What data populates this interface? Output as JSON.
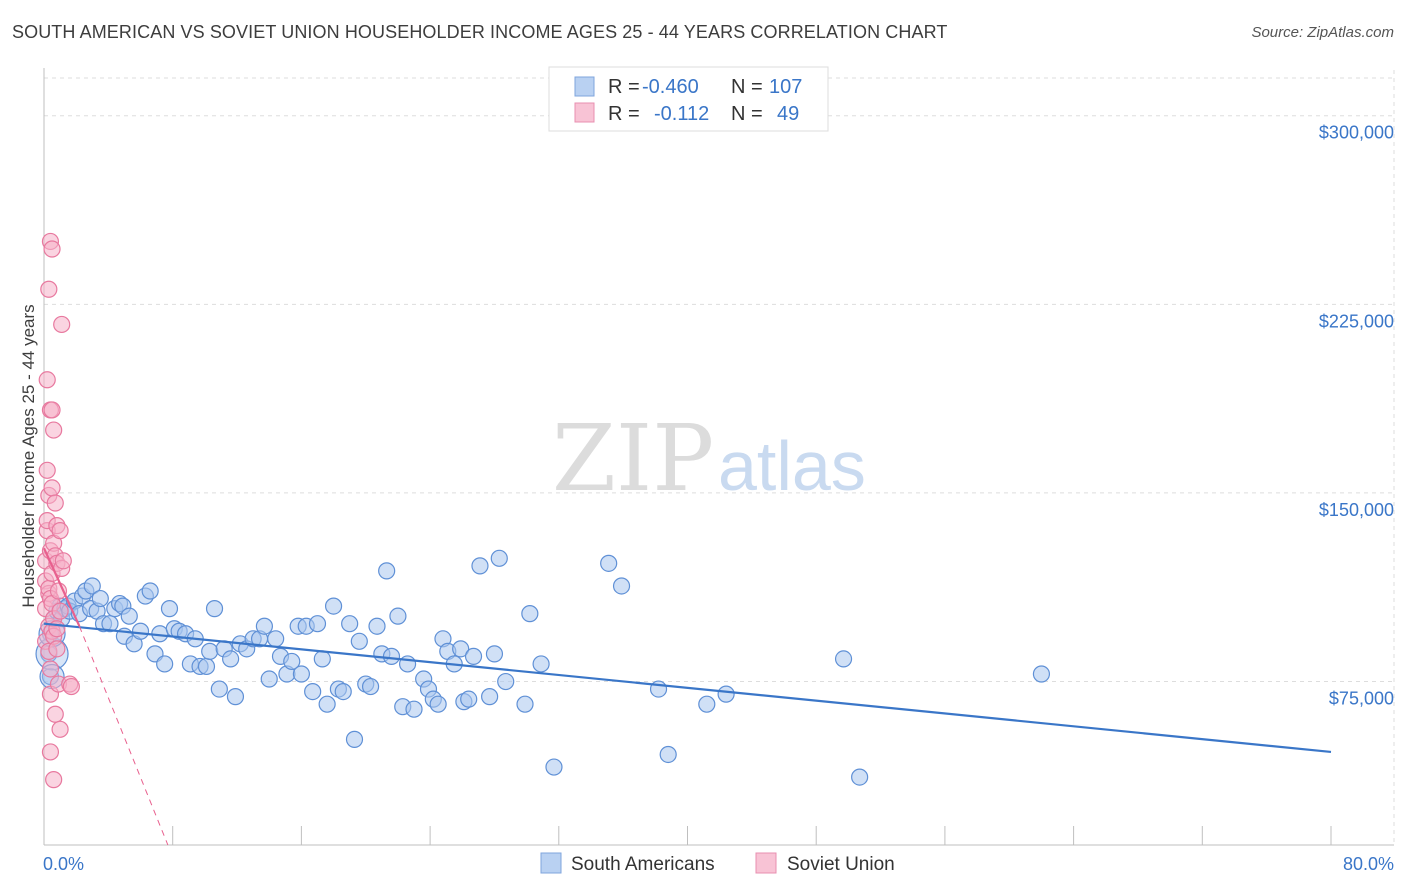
{
  "title": "SOUTH AMERICAN VS SOVIET UNION HOUSEHOLDER INCOME AGES 25 - 44 YEARS CORRELATION CHART",
  "source": "Source: ZipAtlas.com",
  "watermark": {
    "zip": "ZIP",
    "atlas": "atlas"
  },
  "colors": {
    "blue": "#3a76c8",
    "blue_fill": "#a9c6ee",
    "pink": "#e8608e",
    "pink_fill": "#f5b1c8",
    "grid": "#dddddd"
  },
  "chart_data": {
    "type": "scatter",
    "xlabel": "",
    "ylabel": "Householder Income Ages 25 - 44 years",
    "xlim": [
      0,
      80
    ],
    "ylim": [
      10000,
      315000
    ],
    "x_tick_labels": {
      "left": "0.0%",
      "right": "80.0%"
    },
    "y_ticks": [
      {
        "value": 75000,
        "label": "$75,000"
      },
      {
        "value": 150000,
        "label": "$150,000"
      },
      {
        "value": 225000,
        "label": "$225,000"
      },
      {
        "value": 300000,
        "label": "$300,000"
      }
    ],
    "legend": [
      {
        "r_label": "R =",
        "r_value": "-0.460",
        "n_label": "N =",
        "n_value": "107"
      },
      {
        "r_label": "R =",
        "r_value": " -0.112",
        "n_label": "N =",
        "n_value": " 49"
      }
    ],
    "series": [
      {
        "name": "South Americans",
        "trend": {
          "x": [
            0,
            80
          ],
          "y": [
            98000,
            47000
          ]
        },
        "points": [
          [
            0.3,
            86000
          ],
          [
            0.4,
            94000
          ],
          [
            0.4,
            77000
          ],
          [
            0.6,
            100000
          ],
          [
            0.8,
            103000
          ],
          [
            1.0,
            105000
          ],
          [
            1.1,
            100000
          ],
          [
            1.3,
            104000
          ],
          [
            1.5,
            105000
          ],
          [
            1.6,
            103000
          ],
          [
            1.9,
            107000
          ],
          [
            2.2,
            102000
          ],
          [
            2.4,
            109000
          ],
          [
            2.6,
            111000
          ],
          [
            2.9,
            104000
          ],
          [
            3.0,
            113000
          ],
          [
            3.3,
            103000
          ],
          [
            3.5,
            108000
          ],
          [
            3.7,
            98000
          ],
          [
            4.1,
            98000
          ],
          [
            4.4,
            104000
          ],
          [
            4.7,
            106000
          ],
          [
            4.9,
            105000
          ],
          [
            5.0,
            93000
          ],
          [
            5.3,
            101000
          ],
          [
            5.6,
            90000
          ],
          [
            6.0,
            95000
          ],
          [
            6.3,
            109000
          ],
          [
            6.6,
            111000
          ],
          [
            6.9,
            86000
          ],
          [
            7.2,
            94000
          ],
          [
            7.5,
            82000
          ],
          [
            7.8,
            104000
          ],
          [
            8.1,
            96000
          ],
          [
            8.4,
            95000
          ],
          [
            8.8,
            94000
          ],
          [
            9.1,
            82000
          ],
          [
            9.4,
            92000
          ],
          [
            9.7,
            81000
          ],
          [
            10.1,
            81000
          ],
          [
            10.3,
            87000
          ],
          [
            10.6,
            104000
          ],
          [
            10.9,
            72000
          ],
          [
            11.2,
            88000
          ],
          [
            11.6,
            84000
          ],
          [
            11.9,
            69000
          ],
          [
            12.2,
            90000
          ],
          [
            12.6,
            88000
          ],
          [
            13.0,
            92000
          ],
          [
            13.4,
            92000
          ],
          [
            13.7,
            97000
          ],
          [
            14.0,
            76000
          ],
          [
            14.4,
            92000
          ],
          [
            14.7,
            85000
          ],
          [
            15.1,
            78000
          ],
          [
            15.4,
            83000
          ],
          [
            15.8,
            97000
          ],
          [
            16.0,
            78000
          ],
          [
            16.3,
            97000
          ],
          [
            16.7,
            71000
          ],
          [
            17.0,
            98000
          ],
          [
            17.3,
            84000
          ],
          [
            17.6,
            66000
          ],
          [
            18.0,
            105000
          ],
          [
            18.3,
            72000
          ],
          [
            18.6,
            71000
          ],
          [
            19.0,
            98000
          ],
          [
            19.3,
            52000
          ],
          [
            19.6,
            91000
          ],
          [
            20.0,
            74000
          ],
          [
            20.3,
            73000
          ],
          [
            20.7,
            97000
          ],
          [
            21.0,
            86000
          ],
          [
            21.3,
            119000
          ],
          [
            21.6,
            85000
          ],
          [
            22.0,
            101000
          ],
          [
            22.3,
            65000
          ],
          [
            22.6,
            82000
          ],
          [
            23.0,
            64000
          ],
          [
            23.6,
            76000
          ],
          [
            23.9,
            72000
          ],
          [
            24.2,
            68000
          ],
          [
            24.5,
            66000
          ],
          [
            24.8,
            92000
          ],
          [
            25.1,
            87000
          ],
          [
            25.5,
            82000
          ],
          [
            25.9,
            88000
          ],
          [
            26.1,
            67000
          ],
          [
            26.4,
            68000
          ],
          [
            26.7,
            85000
          ],
          [
            27.1,
            121000
          ],
          [
            27.7,
            69000
          ],
          [
            28.0,
            86000
          ],
          [
            28.3,
            124000
          ],
          [
            28.7,
            75000
          ],
          [
            29.9,
            66000
          ],
          [
            30.2,
            102000
          ],
          [
            30.9,
            82000
          ],
          [
            31.7,
            41000
          ],
          [
            35.1,
            122000
          ],
          [
            35.9,
            113000
          ],
          [
            38.2,
            72000
          ],
          [
            38.8,
            46000
          ],
          [
            41.2,
            66000
          ],
          [
            42.4,
            70000
          ],
          [
            49.7,
            84000
          ],
          [
            50.7,
            37000
          ],
          [
            62.0,
            78000
          ]
        ]
      },
      {
        "name": "Soviet Union",
        "trend": {
          "x": [
            0,
            2.2
          ],
          "y": [
            128000,
            97000
          ]
        },
        "trend_ext": {
          "x": [
            2.2,
            7.7
          ],
          "y": [
            97000,
            10000
          ]
        },
        "points": [
          [
            0.1,
            91000
          ],
          [
            0.1,
            104000
          ],
          [
            0.1,
            115000
          ],
          [
            0.1,
            123000
          ],
          [
            0.2,
            135000
          ],
          [
            0.2,
            159000
          ],
          [
            0.2,
            195000
          ],
          [
            0.2,
            139000
          ],
          [
            0.3,
            97000
          ],
          [
            0.3,
            87000
          ],
          [
            0.3,
            110000
          ],
          [
            0.3,
            149000
          ],
          [
            0.3,
            231000
          ],
          [
            0.3,
            112000
          ],
          [
            0.4,
            183000
          ],
          [
            0.4,
            127000
          ],
          [
            0.4,
            108000
          ],
          [
            0.4,
            80000
          ],
          [
            0.4,
            70000
          ],
          [
            0.4,
            47000
          ],
          [
            0.4,
            250000
          ],
          [
            0.5,
            247000
          ],
          [
            0.5,
            152000
          ],
          [
            0.5,
            95000
          ],
          [
            0.5,
            118000
          ],
          [
            0.5,
            183000
          ],
          [
            0.5,
            106000
          ],
          [
            0.6,
            93000
          ],
          [
            0.6,
            130000
          ],
          [
            0.6,
            175000
          ],
          [
            0.6,
            36000
          ],
          [
            0.6,
            100000
          ],
          [
            0.7,
            125000
          ],
          [
            0.7,
            62000
          ],
          [
            0.7,
            146000
          ],
          [
            0.8,
            96000
          ],
          [
            0.8,
            122000
          ],
          [
            0.8,
            88000
          ],
          [
            0.8,
            137000
          ],
          [
            0.9,
            111000
          ],
          [
            0.9,
            74000
          ],
          [
            1.0,
            56000
          ],
          [
            1.0,
            135000
          ],
          [
            1.0,
            103000
          ],
          [
            1.1,
            120000
          ],
          [
            1.1,
            217000
          ],
          [
            1.2,
            123000
          ],
          [
            1.6,
            74000
          ],
          [
            1.7,
            73000
          ]
        ]
      }
    ]
  }
}
